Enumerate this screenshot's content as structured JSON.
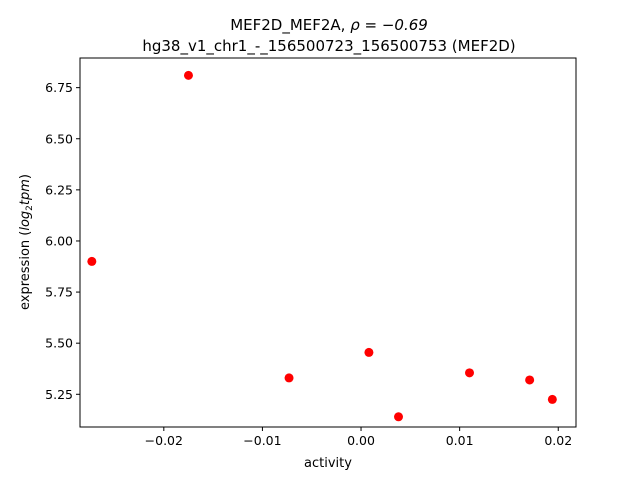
{
  "chart_data": {
    "type": "scatter",
    "title_line1_prefix": "MEF2D_MEF2A, ",
    "title_line1_rho": "ρ = −0.69",
    "title_line2": "hg38_v1_chr1_-_156500723_156500753 (MEF2D)",
    "xlabel": "activity",
    "ylabel_prefix": "expression (",
    "ylabel_math": "log",
    "ylabel_sub": "2",
    "ylabel_math2": "tpm",
    "ylabel_suffix": ")",
    "xlim": [
      -0.0285,
      0.0218
    ],
    "ylim": [
      5.09,
      6.895
    ],
    "xticks": [
      -0.02,
      -0.01,
      0.0,
      0.01,
      0.02
    ],
    "xtick_labels": [
      "−0.02",
      "−0.01",
      "0.00",
      "0.01",
      "0.02"
    ],
    "yticks": [
      5.25,
      5.5,
      5.75,
      6.0,
      6.25,
      6.5,
      6.75
    ],
    "ytick_labels": [
      "5.25",
      "5.50",
      "5.75",
      "6.00",
      "6.25",
      "6.50",
      "6.75"
    ],
    "marker_color": "#ff0000",
    "grid": false,
    "points": [
      {
        "x": -0.0273,
        "y": 5.9
      },
      {
        "x": -0.0175,
        "y": 6.81
      },
      {
        "x": -0.0073,
        "y": 5.33
      },
      {
        "x": 0.0008,
        "y": 5.455
      },
      {
        "x": 0.0038,
        "y": 5.14
      },
      {
        "x": 0.011,
        "y": 5.355
      },
      {
        "x": 0.0171,
        "y": 5.32
      },
      {
        "x": 0.0194,
        "y": 5.225
      }
    ]
  }
}
